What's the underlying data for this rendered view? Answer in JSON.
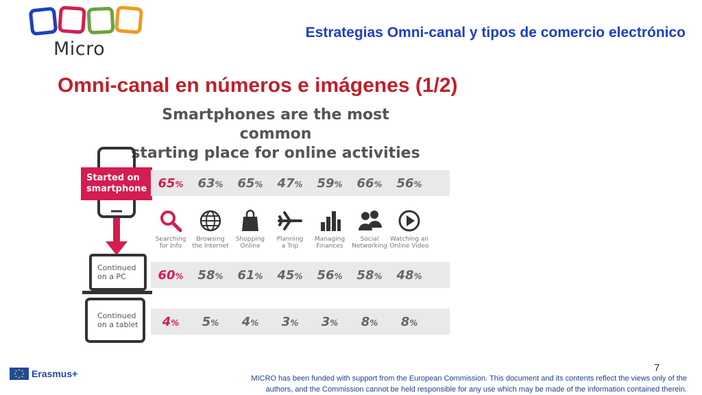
{
  "header": {
    "title": "Estrategias Omni-canal y tipos de comercio electrónico"
  },
  "logo": {
    "text": "Micro",
    "colors": [
      "#1f3fbf",
      "#d41d50",
      "#6aa53a",
      "#f09a20"
    ]
  },
  "slide": {
    "title": "Omni-canal en números e imágenes (1/2)"
  },
  "infographic": {
    "title_line1": "Smartphones are the most common",
    "title_line2": "starting place for online activities",
    "started_label": "Started on\nsmartphone",
    "pc_label": "Continued\non a PC",
    "tablet_label": "Continued\non a tablet",
    "activities": [
      {
        "icon": "magnifier-icon",
        "label": "Searching\nfor Info"
      },
      {
        "icon": "globe-icon",
        "label": "Browsing\nthe Internet"
      },
      {
        "icon": "shopping-bag-icon",
        "label": "Shopping\nOnline"
      },
      {
        "icon": "airplane-icon",
        "label": "Planning\na Trip"
      },
      {
        "icon": "bar-chart-icon",
        "label": "Managing\nFinances"
      },
      {
        "icon": "people-icon",
        "label": "Social\nNetworking"
      },
      {
        "icon": "play-icon",
        "label": "Watching an\nOnline Video"
      }
    ],
    "smartphone_values": [
      "65",
      "63",
      "65",
      "47",
      "59",
      "66",
      "56"
    ],
    "pc_values": [
      "60",
      "58",
      "61",
      "45",
      "56",
      "58",
      "48"
    ],
    "tablet_values": [
      "4",
      "5",
      "4",
      "3",
      "3",
      "8",
      "8"
    ],
    "unit": "%"
  },
  "footer": {
    "page_number": "7",
    "erasmus": "Erasmus+",
    "disclaimer_line1": "MICRO has been funded with support from the European Commission. This document and its contents reflect the views only of the",
    "disclaimer_line2": "authors, and the Commission cannot be held responsible for any use which may be made of the information contained therein."
  }
}
